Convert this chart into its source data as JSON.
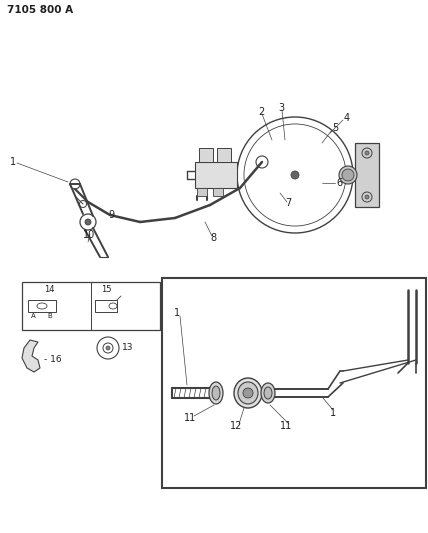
{
  "title": "7105 800 A",
  "bg_color": "#ffffff",
  "line_color": "#404040",
  "text_color": "#202020",
  "fig_width": 4.28,
  "fig_height": 5.33,
  "dpi": 100
}
